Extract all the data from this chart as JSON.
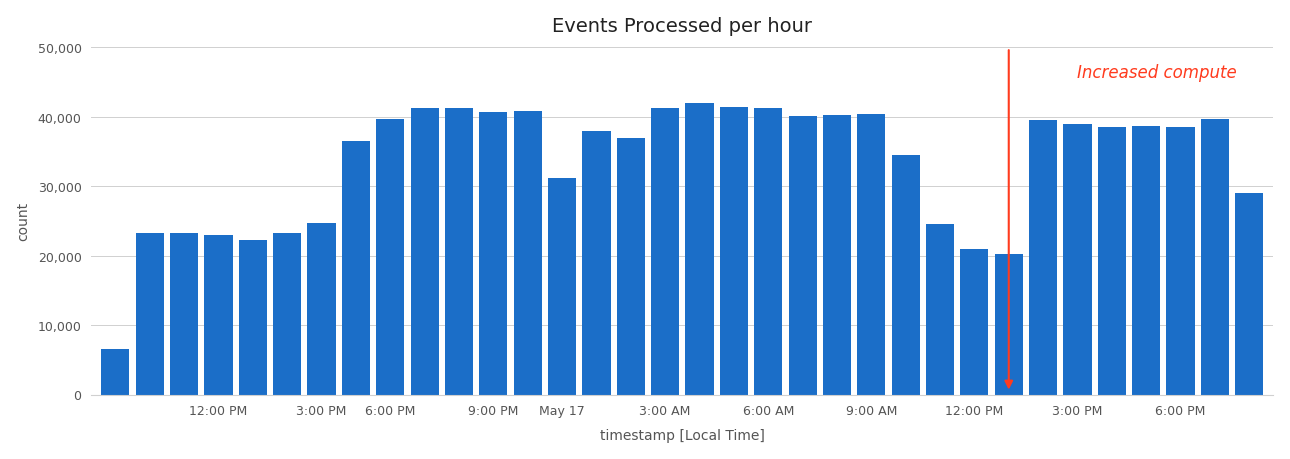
{
  "title": "Events Processed per hour",
  "xlabel": "timestamp [Local Time]",
  "ylabel": "count",
  "bar_color": "#1B6EC8",
  "annotation_text": "Increased compute",
  "annotation_color": "#FF3B1E",
  "ylim": [
    0,
    50000
  ],
  "yticks": [
    0,
    10000,
    20000,
    30000,
    40000,
    50000
  ],
  "ytick_labels": [
    "0",
    "10,000",
    "20,000",
    "30,000",
    "40,000",
    "50,000"
  ],
  "xtick_labels": [
    "",
    "12:00 PM",
    "3:00 PM",
    "6:00 PM",
    "9:00 PM",
    "May 17",
    "3:00 AM",
    "6:00 AM",
    "9:00 AM",
    "12:00 PM",
    "3:00 PM",
    "6:00 PM"
  ],
  "bar_values": [
    6500,
    23200,
    23300,
    22900,
    22200,
    23200,
    24700,
    36500,
    39700,
    41300,
    41200,
    40700,
    40800,
    31200,
    38000,
    37000,
    41200,
    42000,
    41400,
    41200,
    40100,
    40200,
    40400,
    34500,
    24500,
    20900,
    20200,
    39500,
    39000,
    38500,
    38700,
    38500,
    39700,
    29000
  ],
  "arrow_bar_index": 26,
  "background_color": "#FFFFFF",
  "grid_color": "#D0D0D0"
}
